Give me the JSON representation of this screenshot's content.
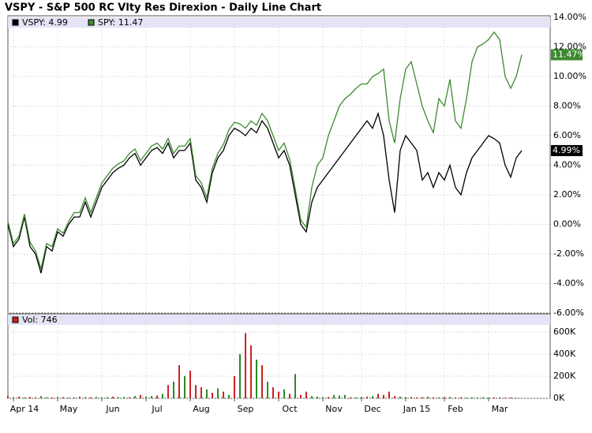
{
  "chart_data": {
    "type": "line",
    "title": "VSPY - S&P 500 RC Vlty Res Direxion - Daily Line Chart",
    "categories": [
      null,
      null,
      null,
      "Apr 14",
      null,
      null,
      null,
      null,
      null,
      null,
      null,
      "May",
      null,
      null,
      null,
      null,
      null,
      null,
      null,
      "Jun",
      null,
      null,
      null,
      null,
      null,
      null,
      null,
      "Jul",
      null,
      null,
      null,
      null,
      null,
      null,
      null,
      "Aug",
      null,
      null,
      null,
      null,
      null,
      null,
      null,
      "Sep",
      null,
      null,
      null,
      null,
      null,
      null,
      null,
      "Oct",
      null,
      null,
      null,
      null,
      null,
      null,
      null,
      "Nov",
      null,
      null,
      null,
      null,
      null,
      null,
      "Dec",
      null,
      null,
      null,
      null,
      null,
      null,
      null,
      "Jan 15",
      null,
      null,
      null,
      null,
      null,
      null,
      "Feb",
      null,
      null,
      null,
      null,
      null,
      null,
      null,
      "Mar",
      null,
      null,
      null,
      null
    ],
    "series": [
      {
        "name": "VSPY: 4.99",
        "color": "#000000",
        "last_value_label": "4.99%",
        "values": [
          0,
          -1.5,
          -1,
          0.5,
          -1.5,
          -2,
          -3.3,
          -1.5,
          -1.8,
          -0.5,
          -0.8,
          0,
          0.5,
          0.5,
          1.5,
          0.5,
          1.5,
          2.5,
          3,
          3.5,
          3.8,
          4,
          4.5,
          4.8,
          4,
          4.5,
          5,
          5.2,
          4.8,
          5.5,
          4.5,
          5,
          5,
          5.5,
          3,
          2.5,
          1.5,
          3.5,
          4.5,
          5,
          6,
          6.5,
          6.3,
          6,
          6.5,
          6.2,
          7,
          6.5,
          5.5,
          4.5,
          5,
          4,
          2,
          0,
          -0.5,
          1.5,
          2.5,
          3,
          3.5,
          4,
          4.5,
          5,
          5.5,
          6,
          6.5,
          7,
          6.5,
          7.5,
          6,
          3,
          0.8,
          5,
          6,
          5.5,
          5,
          3,
          3.5,
          2.5,
          3.5,
          3,
          4,
          2.5,
          2,
          3.5,
          4.5,
          5,
          5.5,
          6,
          5.8,
          5.5,
          4,
          3.2,
          4.5,
          4.99
        ]
      },
      {
        "name": "SPY: 11.47",
        "color": "#3c8a2e",
        "last_value_label": "11.47%",
        "values": [
          0.2,
          -1.3,
          -0.8,
          0.7,
          -1.2,
          -1.8,
          -3,
          -1.3,
          -1.5,
          -0.3,
          -0.6,
          0.2,
          0.8,
          0.8,
          1.8,
          0.8,
          1.8,
          2.8,
          3.3,
          3.8,
          4.1,
          4.3,
          4.8,
          5.1,
          4.3,
          4.8,
          5.3,
          5.5,
          5.1,
          5.8,
          4.8,
          5.3,
          5.3,
          5.8,
          3.3,
          2.8,
          1.8,
          3.8,
          4.8,
          5.4,
          6.4,
          6.9,
          6.8,
          6.5,
          7,
          6.7,
          7.5,
          7,
          6,
          5,
          5.5,
          4.4,
          2.4,
          0.3,
          -0.2,
          2.5,
          4,
          4.5,
          6,
          7,
          8,
          8.5,
          8.8,
          9.2,
          9.5,
          9.5,
          10,
          10.2,
          10.5,
          7,
          5.5,
          8.5,
          10.5,
          11,
          9.5,
          8,
          7,
          6.2,
          8.5,
          8,
          9.8,
          7,
          6.5,
          8.5,
          11,
          12,
          12.2,
          12.5,
          13,
          12.5,
          10,
          9.2,
          10,
          11.47
        ]
      }
    ],
    "ylim": [
      -6,
      14
    ],
    "yticks": [
      {
        "value": 14,
        "label": "14.00%"
      },
      {
        "value": 12,
        "label": "12.00%"
      },
      {
        "value": 10,
        "label": "10.00%"
      },
      {
        "value": 8,
        "label": "8.00%"
      },
      {
        "value": 6,
        "label": "6.00%"
      },
      {
        "value": 4,
        "label": "4.00%"
      },
      {
        "value": 2,
        "label": "2.00%"
      },
      {
        "value": 0,
        "label": "0.00%"
      },
      {
        "value": -2,
        "label": "-2.00%"
      },
      {
        "value": -4,
        "label": "-4.00%"
      },
      {
        "value": -6,
        "label": "-6.00%"
      }
    ],
    "grid": true,
    "volume": {
      "type": "bar",
      "ylim": [
        0,
        764000
      ],
      "yticks": [
        {
          "value": 600000,
          "label": "600K"
        },
        {
          "value": 400000,
          "label": "400K"
        },
        {
          "value": 200000,
          "label": "200K"
        },
        {
          "value": 0,
          "label": "0K"
        }
      ],
      "series": [
        {
          "name": "Vol: 746",
          "color": "#cc2222",
          "values": [
            20000,
            10000,
            15000,
            8000,
            12000,
            10000,
            20000,
            9000,
            8000,
            12000,
            10000,
            6000,
            8000,
            15000,
            10000,
            9000,
            12000,
            8000,
            10000,
            15000,
            10000,
            12000,
            9000,
            20000,
            30000,
            15000,
            20000,
            25000,
            40000,
            120000,
            150000,
            300000,
            200000,
            250000,
            120000,
            100000,
            80000,
            50000,
            90000,
            60000,
            30000,
            200000,
            400000,
            590000,
            480000,
            350000,
            300000,
            150000,
            100000,
            60000,
            80000,
            40000,
            220000,
            30000,
            60000,
            20000,
            15000,
            10000,
            12000,
            30000,
            25000,
            30000,
            10000,
            8000,
            12000,
            15000,
            20000,
            40000,
            30000,
            60000,
            20000,
            15000,
            10000,
            12000,
            8000,
            10000,
            15000,
            9000,
            8000,
            10000,
            12000,
            8000,
            10000,
            6000,
            9000,
            8000,
            10000,
            7000,
            8000,
            9000,
            6000,
            8000,
            5000,
            746
          ],
          "colors": [
            "#cc2222",
            "#2a8a2a",
            "#cc2222",
            "#2a8a2a",
            "#cc2222",
            "#cc2222",
            "#2a8a2a",
            "#2a8a2a",
            "#cc2222",
            "#2a8a2a",
            "#cc2222",
            "#2a8a2a",
            "#2a8a2a",
            "#cc2222",
            "#2a8a2a",
            "#cc2222",
            "#2a8a2a",
            "#2a8a2a",
            "#2a8a2a",
            "#cc2222",
            "#2a8a2a",
            "#2a8a2a",
            "#cc2222",
            "#2a8a2a",
            "#cc2222",
            "#2a8a2a",
            "#2a8a2a",
            "#cc2222",
            "#2a8a2a",
            "#cc2222",
            "#2a8a2a",
            "#cc2222",
            "#2a8a2a",
            "#cc2222",
            "#cc2222",
            "#cc2222",
            "#2a8a2a",
            "#cc2222",
            "#2a8a2a",
            "#cc2222",
            "#2a8a2a",
            "#cc2222",
            "#2a8a2a",
            "#cc2222",
            "#cc2222",
            "#2a8a2a",
            "#cc2222",
            "#2a8a2a",
            "#cc2222",
            "#cc2222",
            "#2a8a2a",
            "#cc2222",
            "#2a8a2a",
            "#cc2222",
            "#cc2222",
            "#2a8a2a",
            "#2a8a2a",
            "#2a8a2a",
            "#cc2222",
            "#2a8a2a",
            "#2a8a2a",
            "#2a8a2a",
            "#cc2222",
            "#2a8a2a",
            "#2a8a2a",
            "#cc2222",
            "#2a8a2a",
            "#cc2222",
            "#cc2222",
            "#cc2222",
            "#cc2222",
            "#2a8a2a",
            "#2a8a2a",
            "#cc2222",
            "#cc2222",
            "#cc2222",
            "#2a8a2a",
            "#cc2222",
            "#2a8a2a",
            "#cc2222",
            "#2a8a2a",
            "#cc2222",
            "#cc2222",
            "#2a8a2a",
            "#2a8a2a",
            "#2a8a2a",
            "#2a8a2a",
            "#2a8a2a",
            "#cc2222",
            "#cc2222",
            "#cc2222",
            "#cc2222",
            "#2a8a2a",
            "#cc2222"
          ]
        }
      ]
    }
  }
}
